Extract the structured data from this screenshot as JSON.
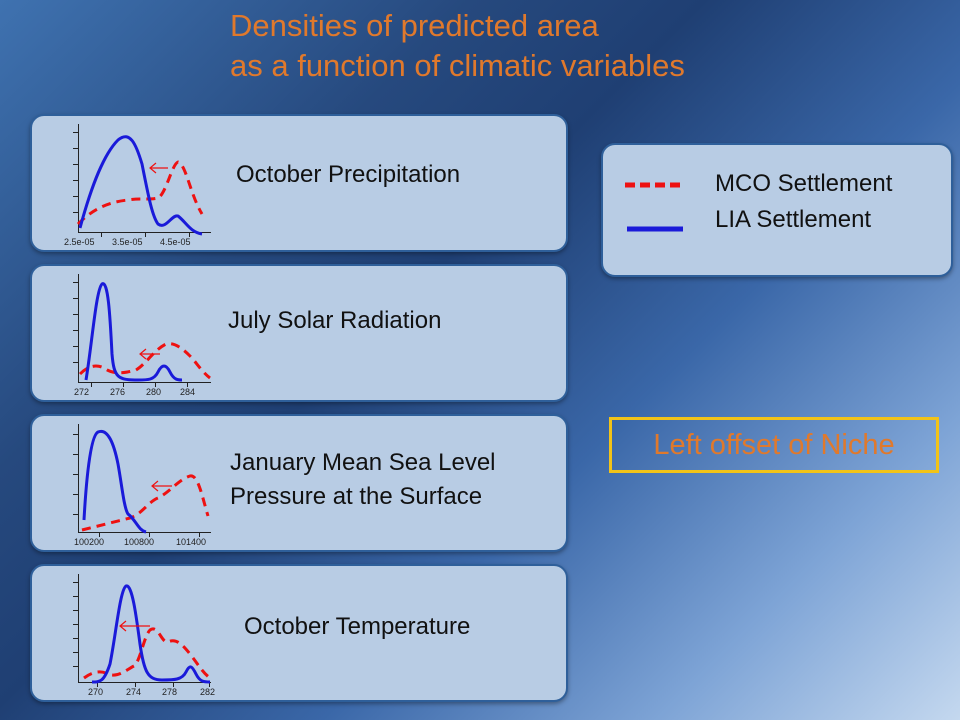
{
  "title": {
    "line1": "Densities of predicted area",
    "line2": "as a function  of climatic variables"
  },
  "colors": {
    "title": "#e0792c",
    "mco": "#ee1111",
    "lia": "#1a1ad9",
    "niche_border": "#f2c318"
  },
  "panels": [
    {
      "label": "October Precipitation",
      "xticks": [
        "2.5e-05",
        "3.5e-05",
        "4.5e-05"
      ],
      "arrow_icon": "left-arrow-icon"
    },
    {
      "label": "July Solar Radiation",
      "xticks": [
        "272",
        "276",
        "280",
        "284"
      ],
      "arrow_icon": "left-arrow-icon"
    },
    {
      "label": "January Mean Sea Level\nPressure at the Surface",
      "xticks": [
        "100200",
        "100800",
        "101400"
      ],
      "arrow_icon": "left-arrow-icon"
    },
    {
      "label": "October  Temperature",
      "xticks": [
        "270",
        "274",
        "278",
        "282"
      ],
      "arrow_icon": "left-arrow-icon"
    }
  ],
  "legend": {
    "mco_label": "MCO Settlement",
    "lia_label": "LIA Settlement"
  },
  "niche_label": "Left offset of Niche"
}
